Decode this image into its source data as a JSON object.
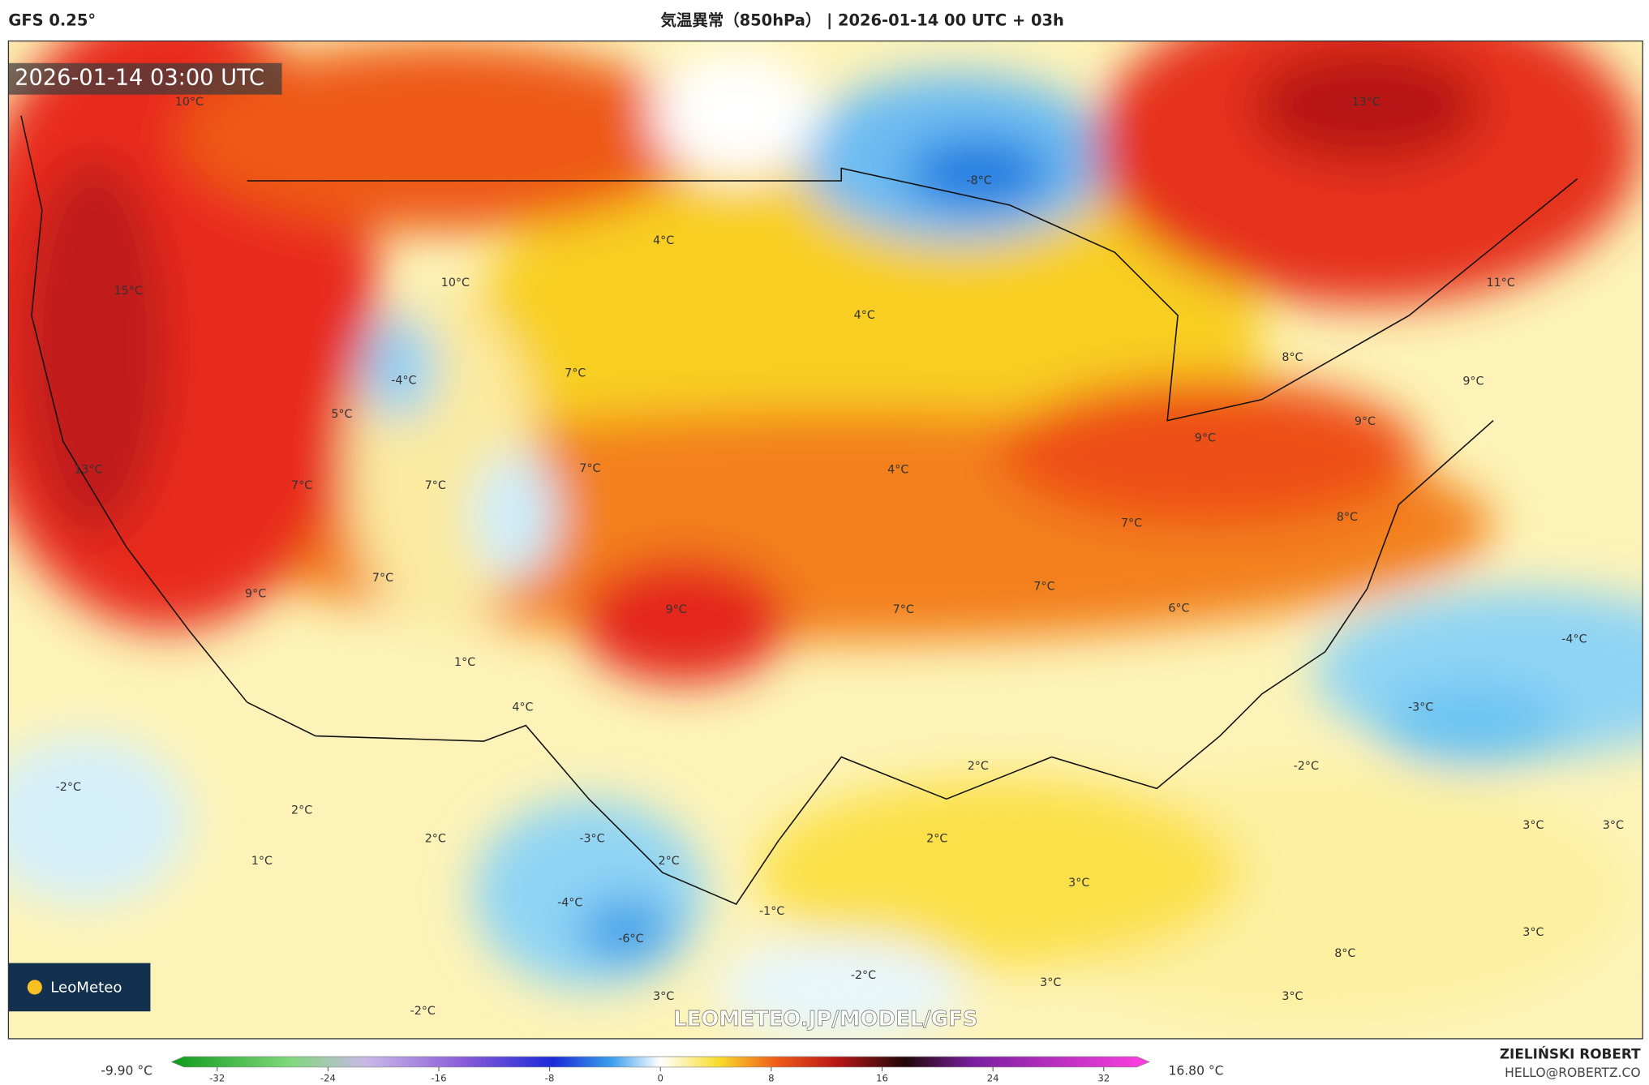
{
  "header": {
    "model": "GFS 0.25°",
    "title": "気温異常（850hPa） | 2026-01-14 00 UTC + 03h"
  },
  "map": {
    "timestamp": "2026-01-14 03:00 UTC",
    "watermark": "LEOMETEO.JP/MODEL/GFS",
    "logo": "LeoMeteo",
    "labels": [
      "10°C",
      "15°C",
      "10°C",
      "-4°C",
      "5°C",
      "7°C",
      "4°C",
      "-8°C",
      "13°C",
      "11°C",
      "4°C",
      "8°C",
      "9°C",
      "9°C",
      "9°C",
      "13°C",
      "7°C",
      "7°C",
      "7°C",
      "4°C",
      "7°C",
      "8°C",
      "9°C",
      "7°C",
      "9°C",
      "7°C",
      "7°C",
      "6°C",
      "-4°C",
      "1°C",
      "4°C",
      "-3°C",
      "-2°C",
      "2°C",
      "-2°C",
      "2°C",
      "2°C",
      "-3°C",
      "2°C",
      "3°C",
      "3°C",
      "1°C",
      "2°C",
      "3°C",
      "-4°C",
      "-1°C",
      "-6°C",
      "3°C",
      "8°C",
      "-2°C",
      "3°C",
      "3°C",
      "-2°C",
      "3°C"
    ]
  },
  "colorbar": {
    "min_label": "-9.90 °C",
    "max_label": "16.80 °C",
    "ticks": [
      -32,
      -24,
      -16,
      -8,
      0,
      8,
      16,
      24,
      32
    ],
    "range": [
      -35.3,
      35.3
    ]
  },
  "footer": {
    "author": "ZIELIŃSKI ROBERT",
    "contact": "HELLO@ROBERTZ.CO"
  }
}
